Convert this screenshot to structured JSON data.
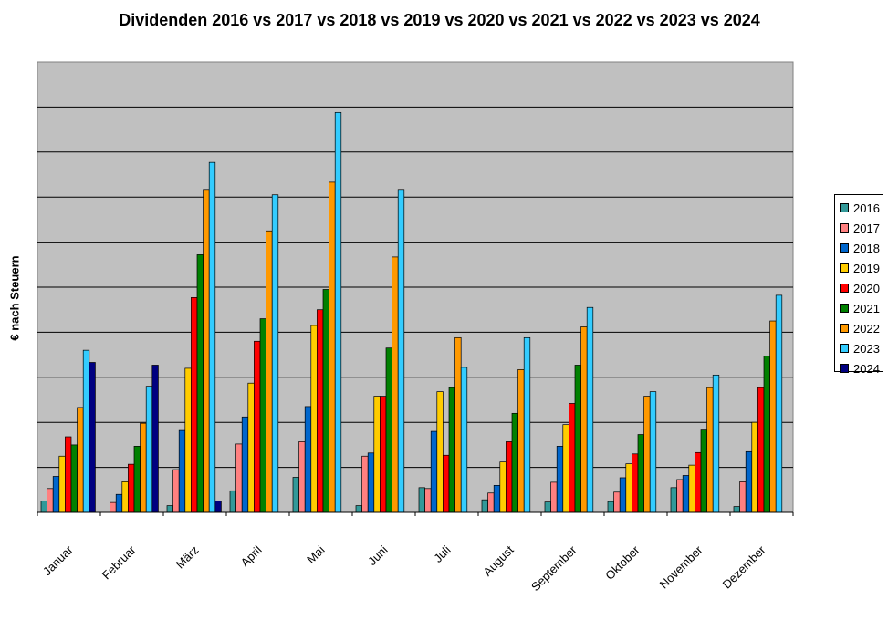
{
  "chart_data": {
    "type": "bar",
    "title": "Dividenden 2016 vs 2017 vs 2018 vs 2019 vs 2020 vs 2021 vs 2022 vs 2023 vs 2024",
    "xlabel": "",
    "ylabel": "€ nach Steuern",
    "ylim": [
      0,
      10
    ],
    "grid": true,
    "legend_position": "right",
    "categories": [
      "Januar",
      "Februar",
      "März",
      "April",
      "Mai",
      "Juni",
      "Juli",
      "August",
      "September",
      "Oktober",
      "November",
      "Dezember"
    ],
    "series": [
      {
        "name": "2016",
        "color": "#339999",
        "values": [
          0.25,
          0,
          0.15,
          0.48,
          0.78,
          0.15,
          0.55,
          0.28,
          0.23,
          0.24,
          0.55,
          0.13
        ]
      },
      {
        "name": "2017",
        "color": "#FF8080",
        "values": [
          0.53,
          0.22,
          0.95,
          1.52,
          1.57,
          1.25,
          0.53,
          0.43,
          0.67,
          0.45,
          0.73,
          0.68
        ]
      },
      {
        "name": "2018",
        "color": "#0066CC",
        "values": [
          0.8,
          0.4,
          1.82,
          2.12,
          2.35,
          1.32,
          1.8,
          0.6,
          1.47,
          0.77,
          0.82,
          1.35
        ]
      },
      {
        "name": "2019",
        "color": "#FFCC00",
        "values": [
          1.25,
          0.68,
          3.2,
          2.87,
          4.15,
          2.58,
          2.68,
          1.12,
          1.95,
          1.08,
          1.05,
          2.0
        ]
      },
      {
        "name": "2020",
        "color": "#FF0000",
        "values": [
          1.68,
          1.07,
          4.77,
          3.8,
          4.5,
          2.58,
          1.27,
          1.57,
          2.42,
          1.3,
          1.33,
          2.77
        ]
      },
      {
        "name": "2021",
        "color": "#008000",
        "values": [
          1.5,
          1.47,
          5.72,
          4.3,
          4.95,
          3.65,
          2.77,
          2.2,
          3.27,
          1.73,
          1.83,
          3.47
        ]
      },
      {
        "name": "2022",
        "color": "#FF9900",
        "values": [
          2.33,
          1.98,
          7.17,
          6.25,
          7.33,
          5.67,
          3.88,
          3.17,
          4.12,
          2.58,
          2.77,
          4.25
        ]
      },
      {
        "name": "2023",
        "color": "#33CCFF",
        "values": [
          3.6,
          2.8,
          7.77,
          7.05,
          8.88,
          7.17,
          3.22,
          3.88,
          4.55,
          2.68,
          3.05,
          4.82
        ]
      },
      {
        "name": "2024",
        "color": "#000080",
        "values": [
          3.33,
          3.27,
          0.25,
          0,
          0,
          0,
          0,
          0,
          0,
          0,
          0,
          0
        ]
      }
    ]
  }
}
